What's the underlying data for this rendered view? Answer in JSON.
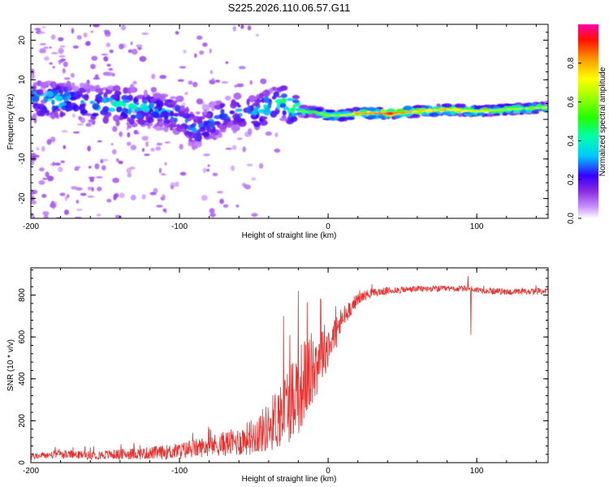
{
  "title": "S225.2026.110.06.57.G11",
  "chart_data": [
    {
      "type": "heatmap",
      "xlabel": "Height of straight line (km)",
      "ylabel": "Frequency (Hz)",
      "xlim": [
        -200,
        148
      ],
      "ylim": [
        -25,
        24
      ],
      "x_ticks": [
        -200,
        -100,
        0,
        100
      ],
      "x_tick_labels": [
        "-200",
        "-100",
        "0",
        "100"
      ],
      "y_ticks": [
        -20,
        -10,
        0,
        10,
        20
      ],
      "y_tick_labels": [
        "-20",
        "-10",
        "0",
        "10",
        "20"
      ],
      "colorbar": {
        "label": "Normalized spectral amplitude",
        "range": [
          0,
          1
        ],
        "ticks": [
          0,
          0.2,
          0.4,
          0.6,
          0.8
        ],
        "tick_labels": [
          "0.0",
          "0.2",
          "0.4",
          "0.6",
          "0.8"
        ]
      },
      "ridge": {
        "x": [
          -200,
          -180,
          -160,
          -140,
          -120,
          -100,
          -90,
          -80,
          -70,
          -60,
          -50,
          -40,
          -30,
          -20,
          -10,
          0,
          10,
          20,
          40,
          60,
          80,
          100,
          120,
          148
        ],
        "freq": [
          5,
          5,
          4,
          3.5,
          2.5,
          1,
          -3,
          -1,
          1,
          2,
          1,
          3,
          4.5,
          2,
          2,
          1,
          1,
          1.5,
          1.5,
          2,
          2.5,
          2,
          2.5,
          3
        ],
        "amplitude": [
          0.35,
          0.4,
          0.35,
          0.4,
          0.35,
          0.3,
          0.3,
          0.3,
          0.3,
          0.3,
          0.35,
          0.4,
          0.45,
          0.55,
          0.5,
          0.6,
          0.6,
          0.75,
          0.9,
          0.7,
          0.75,
          0.65,
          0.6,
          0.6
        ]
      }
    },
    {
      "type": "line",
      "xlabel": "Height of straight line (km)",
      "ylabel": "SNR (10 * v/v)",
      "xlim": [
        -200,
        148
      ],
      "ylim": [
        0,
        930
      ],
      "x_ticks": [
        -200,
        -100,
        0,
        100
      ],
      "x_tick_labels": [
        "-200",
        "-100",
        "0",
        "100"
      ],
      "y_ticks": [
        0,
        200,
        400,
        600,
        800
      ],
      "y_tick_labels": [
        "0",
        "200",
        "400",
        "600",
        "800"
      ],
      "series": [
        {
          "name": "SNR",
          "color": "#e8312e",
          "x": [
            -200,
            -180,
            -160,
            -140,
            -120,
            -100,
            -80,
            -60,
            -50,
            -40,
            -30,
            -25,
            -20,
            -15,
            -10,
            -5,
            0,
            5,
            10,
            15,
            20,
            25,
            30,
            40,
            50,
            60,
            70,
            80,
            90,
            95,
            100,
            110,
            120,
            130,
            148
          ],
          "y": [
            30,
            40,
            35,
            40,
            45,
            55,
            80,
            100,
            130,
            170,
            250,
            300,
            350,
            400,
            450,
            520,
            560,
            620,
            690,
            740,
            780,
            800,
            810,
            820,
            825,
            830,
            830,
            830,
            830,
            830,
            825,
            820,
            815,
            815,
            820
          ],
          "noise": [
            15,
            20,
            20,
            25,
            30,
            40,
            50,
            70,
            90,
            120,
            180,
            200,
            220,
            200,
            180,
            150,
            110,
            90,
            60,
            40,
            30,
            25,
            20,
            18,
            16,
            15,
            15,
            15,
            15,
            15,
            15,
            15,
            15,
            15,
            15
          ],
          "spikes": [
            [
              -20,
              820
            ],
            [
              -30,
              700
            ],
            [
              -5,
              780
            ],
            [
              96,
              920
            ],
            [
              96,
              610
            ],
            [
              94,
              890
            ]
          ]
        }
      ]
    }
  ]
}
